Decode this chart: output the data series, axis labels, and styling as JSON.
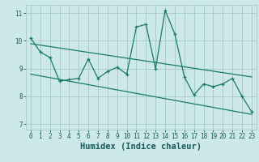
{
  "title": "",
  "xlabel": "Humidex (Indice chaleur)",
  "ylabel": "",
  "bg_color": "#cce8e8",
  "grid_color": "#aacccc",
  "line_color": "#1a7a6a",
  "ylim": [
    6.8,
    11.3
  ],
  "xlim": [
    -0.5,
    23.5
  ],
  "yticks": [
    7,
    8,
    9,
    10,
    11
  ],
  "xticks": [
    0,
    1,
    2,
    3,
    4,
    5,
    6,
    7,
    8,
    9,
    10,
    11,
    12,
    13,
    14,
    15,
    16,
    17,
    18,
    19,
    20,
    21,
    22,
    23
  ],
  "series1_x": [
    0,
    1,
    2,
    3,
    4,
    5,
    6,
    7,
    8,
    9,
    10,
    11,
    12,
    13,
    14,
    15,
    16,
    17,
    18,
    19,
    20,
    21,
    22,
    23
  ],
  "series1_y": [
    10.1,
    9.6,
    9.4,
    8.55,
    8.6,
    8.65,
    9.35,
    8.65,
    8.9,
    9.05,
    8.8,
    10.5,
    10.6,
    9.0,
    11.1,
    10.25,
    8.7,
    8.05,
    8.45,
    8.35,
    8.45,
    8.65,
    8.0,
    7.45
  ],
  "trend1_x": [
    0,
    23
  ],
  "trend1_y": [
    9.9,
    8.7
  ],
  "trend2_x": [
    0,
    23
  ],
  "trend2_y": [
    8.8,
    7.35
  ],
  "font_color": "#1a5a5a",
  "tick_fontsize": 5.5,
  "label_fontsize": 7.5
}
